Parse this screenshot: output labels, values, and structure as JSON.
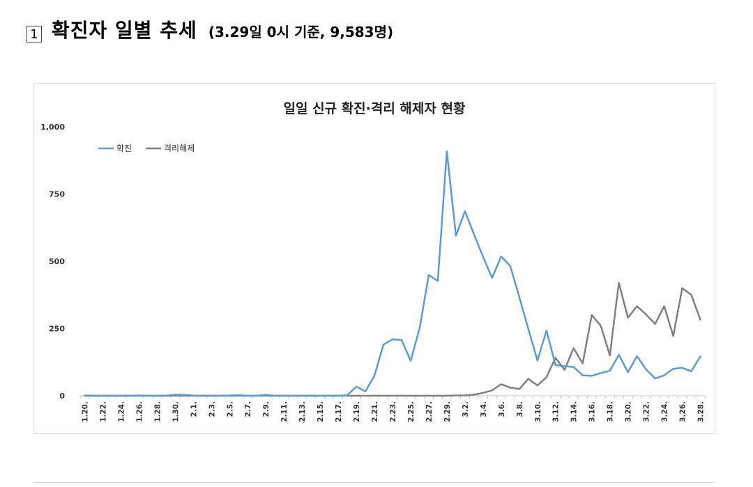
{
  "heading": {
    "number": "1",
    "title": "확진자 일별 추세",
    "subtitle": "(3.29일 0시 기준, 9,583명)"
  },
  "chart_data": {
    "type": "line",
    "title": "일일 신규 확진·격리 해제자 현황",
    "xlabel": "",
    "ylabel": "",
    "ylim": [
      0,
      1000
    ],
    "yticks": [
      "0",
      "250",
      "500",
      "750",
      "1,000"
    ],
    "grid": false,
    "legend_position": "top-left",
    "x": [
      "1.20.",
      "1.21.",
      "1.22.",
      "1.23.",
      "1.24.",
      "1.25.",
      "1.26.",
      "1.27.",
      "1.28.",
      "1.29.",
      "1.30.",
      "1.31.",
      "2.1.",
      "2.2.",
      "2.3.",
      "2.4.",
      "2.5.",
      "2.6.",
      "2.7.",
      "2.8.",
      "2.9.",
      "2.10.",
      "2.11.",
      "2.12.",
      "2.13.",
      "2.14.",
      "2.15.",
      "2.16.",
      "2.17.",
      "2.18.",
      "2.19.",
      "2.20.",
      "2.21.",
      "2.22.",
      "2.23.",
      "2.24.",
      "2.25.",
      "2.26.",
      "2.27.",
      "2.28.",
      "2.29.",
      "3.1.",
      "3.2.",
      "3.3.",
      "3.4.",
      "3.5.",
      "3.6.",
      "3.7.",
      "3.8.",
      "3.9.",
      "3.10.",
      "3.11.",
      "3.12.",
      "3.13.",
      "3.14.",
      "3.15.",
      "3.16.",
      "3.17.",
      "3.18.",
      "3.19.",
      "3.20.",
      "3.21.",
      "3.22.",
      "3.23.",
      "3.24.",
      "3.25.",
      "3.26.",
      "3.27.",
      "3.28."
    ],
    "x_tick_labels": [
      "1.20.",
      "1.22.",
      "1.24.",
      "1.26.",
      "1.28.",
      "1.30.",
      "2.1.",
      "2.3.",
      "2.5.",
      "2.7.",
      "2.9.",
      "2.11.",
      "2.13.",
      "2.15.",
      "2.17.",
      "2.19.",
      "2.21.",
      "2.23.",
      "2.25.",
      "2.27.",
      "2.29.",
      "3.2.",
      "3.4.",
      "3.6.",
      "3.8.",
      "3.10.",
      "3.12.",
      "3.14.",
      "3.16.",
      "3.18.",
      "3.20.",
      "3.22.",
      "3.24.",
      "3.26.",
      "3.28."
    ],
    "series": [
      {
        "name": "확진",
        "color": "#5b9bd5",
        "values": [
          1,
          0,
          0,
          0,
          0,
          0,
          1,
          0,
          0,
          0,
          4,
          3,
          1,
          0,
          0,
          0,
          1,
          2,
          0,
          0,
          3,
          0,
          0,
          0,
          0,
          0,
          0,
          0,
          0,
          2,
          34,
          16,
          74,
          190,
          210,
          207,
          130,
          253,
          449,
          427,
          909,
          595,
          686,
          600,
          516,
          438,
          518,
          483,
          367,
          248,
          131,
          242,
          114,
          110,
          107,
          76,
          74,
          84,
          93,
          152,
          87,
          147,
          98,
          64,
          76,
          100,
          104,
          91,
          146
        ]
      },
      {
        "name": "격리해제",
        "color": "#7f7f7f",
        "values": [
          0,
          0,
          0,
          0,
          0,
          0,
          0,
          0,
          0,
          0,
          0,
          0,
          0,
          0,
          0,
          0,
          0,
          0,
          0,
          0,
          0,
          0,
          0,
          0,
          0,
          0,
          0,
          0,
          0,
          0,
          0,
          0,
          0,
          0,
          0,
          0,
          0,
          0,
          0,
          0,
          0,
          1,
          1,
          4,
          11,
          20,
          43,
          30,
          25,
          63,
          38,
          69,
          141,
          96,
          177,
          120,
          300,
          260,
          150,
          420,
          290,
          333,
          302,
          267,
          333,
          222,
          400,
          375,
          283
        ]
      }
    ]
  }
}
